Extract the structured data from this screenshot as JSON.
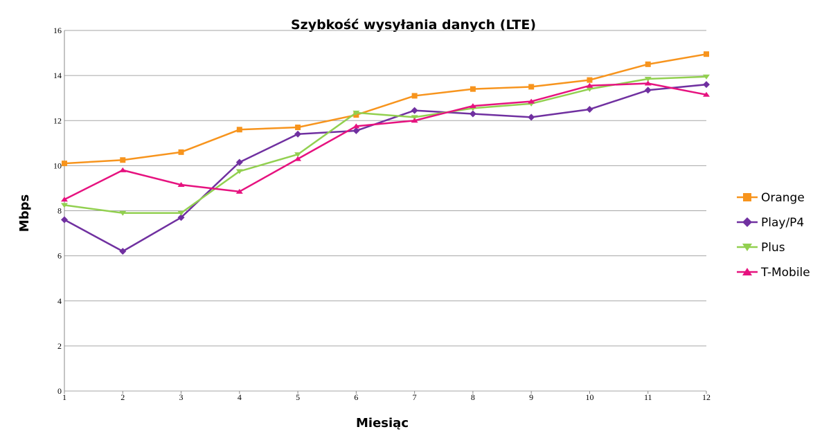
{
  "chart_data": {
    "type": "line",
    "title": "Szybkość wysyłania danych (LTE)",
    "xlabel": "Miesiąc",
    "ylabel": "Mbps",
    "x": [
      1,
      2,
      3,
      4,
      5,
      6,
      7,
      8,
      9,
      10,
      11,
      12
    ],
    "x_tick_labels": [
      "1",
      "2",
      "3",
      "4",
      "5",
      "6",
      "7",
      "8",
      "9",
      "10",
      "11",
      "12"
    ],
    "y_tick_labels": [
      "0",
      "2",
      "4",
      "6",
      "8",
      "10",
      "12",
      "14",
      "16"
    ],
    "y_ticks": [
      0,
      2,
      4,
      6,
      8,
      10,
      12,
      14,
      16
    ],
    "ylim": [
      0,
      16
    ],
    "grid": true,
    "legend_position": "right",
    "series": [
      {
        "name": "Orange",
        "color": "#f7941d",
        "marker": "square",
        "values": [
          10.1,
          10.25,
          10.6,
          11.6,
          11.7,
          12.25,
          13.1,
          13.4,
          13.5,
          13.8,
          14.5,
          14.95
        ]
      },
      {
        "name": "Play/P4",
        "color": "#7030a0",
        "marker": "diamond",
        "values": [
          7.6,
          6.2,
          7.7,
          10.15,
          11.4,
          11.55,
          12.45,
          12.3,
          12.15,
          12.5,
          13.35,
          13.6
        ]
      },
      {
        "name": "Plus",
        "color": "#92d050",
        "marker": "triangle-down",
        "values": [
          8.25,
          7.9,
          7.9,
          9.75,
          10.5,
          12.35,
          12.15,
          12.55,
          12.75,
          13.4,
          13.85,
          13.95
        ]
      },
      {
        "name": "T-Mobile",
        "color": "#e6127f",
        "marker": "triangle-up",
        "values": [
          8.5,
          9.8,
          9.15,
          8.85,
          10.3,
          11.75,
          12.0,
          12.65,
          12.85,
          13.55,
          13.65,
          13.15
        ]
      }
    ]
  }
}
